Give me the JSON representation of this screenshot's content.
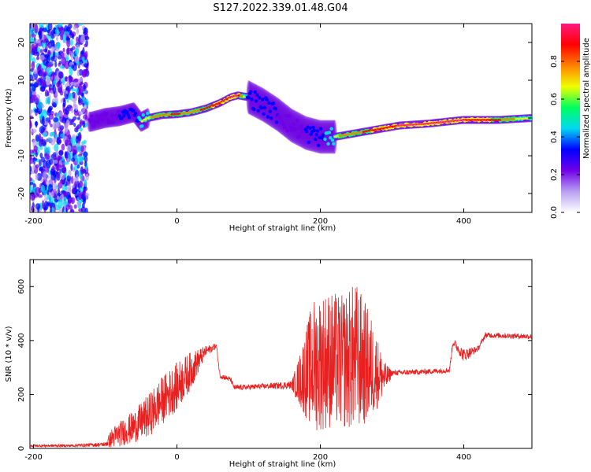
{
  "title": "S127.2022.339.01.48.G04",
  "chart_data": [
    {
      "type": "heatmap",
      "name": "spectrogram",
      "xlabel": "Height of straight line (km)",
      "ylabel": "Frequency (Hz)",
      "xlim": [
        -205,
        495
      ],
      "ylim": [
        -25,
        25
      ],
      "xticks": [
        -200,
        0,
        200,
        400
      ],
      "yticks": [
        -20,
        -10,
        0,
        10,
        20
      ],
      "colorbar": {
        "label": "Normalized spectral amplitude",
        "range": [
          0.0,
          1.0
        ],
        "ticks": [
          0.0,
          0.2,
          0.4,
          0.6,
          0.8
        ],
        "colors": [
          "#ffffff",
          "#b8a0f0",
          "#7000e8",
          "#0000ff",
          "#00d8f0",
          "#00ff60",
          "#f0ff00",
          "#ff8000",
          "#ff0000",
          "#ff1a80"
        ]
      },
      "noise_region_x": [
        -205,
        -125
      ],
      "ridge": {
        "x": [
          -120,
          -100,
          -80,
          -60,
          -50,
          -40,
          -20,
          0,
          20,
          40,
          60,
          75,
          85,
          100,
          120,
          140,
          160,
          180,
          200,
          220,
          250,
          280,
          310,
          350,
          400,
          450,
          495
        ],
        "freq": [
          -1.0,
          0.0,
          0.5,
          1.5,
          -1.0,
          0.0,
          0.8,
          1.0,
          1.5,
          2.5,
          4.0,
          5.5,
          6.0,
          5.5,
          3.5,
          1.0,
          -2.0,
          -4.0,
          -5.0,
          -5.0,
          -4.0,
          -3.0,
          -2.0,
          -1.5,
          -0.5,
          -0.5,
          0.0
        ],
        "amplitude": [
          0.3,
          0.35,
          0.4,
          0.5,
          0.6,
          0.7,
          0.8,
          0.85,
          0.8,
          0.85,
          0.9,
          0.95,
          0.95,
          0.5,
          0.4,
          0.4,
          0.35,
          0.4,
          0.5,
          0.7,
          0.8,
          0.9,
          0.95,
          0.95,
          0.95,
          0.85,
          0.6
        ]
      }
    },
    {
      "type": "line",
      "name": "snr",
      "xlabel": "Height of straight line (km)",
      "ylabel": "SNR (10 * v/v)",
      "xlim": [
        -205,
        495
      ],
      "ylim": [
        0,
        700
      ],
      "xticks": [
        -200,
        0,
        200,
        400
      ],
      "yticks": [
        0,
        200,
        400,
        600
      ],
      "color": "#e82020",
      "series_envelope": {
        "x": [
          -205,
          -150,
          -100,
          -90,
          -60,
          -40,
          -20,
          0,
          20,
          40,
          55,
          60,
          75,
          80,
          120,
          160,
          170,
          190,
          210,
          230,
          250,
          270,
          290,
          300,
          350,
          380,
          385,
          400,
          420,
          430,
          495
        ],
        "center": [
          10,
          10,
          15,
          40,
          80,
          120,
          180,
          230,
          290,
          360,
          380,
          270,
          255,
          225,
          230,
          235,
          250,
          310,
          330,
          320,
          340,
          300,
          260,
          280,
          285,
          290,
          395,
          345,
          370,
          420,
          415
        ],
        "spread": [
          5,
          5,
          8,
          40,
          60,
          80,
          90,
          90,
          70,
          20,
          10,
          10,
          10,
          10,
          10,
          15,
          90,
          250,
          260,
          250,
          280,
          200,
          60,
          10,
          10,
          10,
          15,
          25,
          10,
          10,
          10
        ]
      }
    }
  ]
}
